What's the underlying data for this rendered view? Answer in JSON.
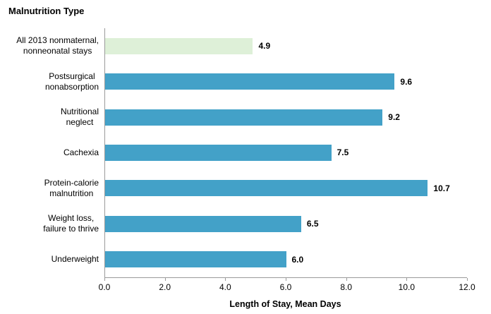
{
  "chart_data": {
    "type": "bar",
    "orientation": "horizontal",
    "title": "Malnutrition Type",
    "xlabel": "Length of Stay, Mean Days",
    "categories": [
      "All 2013 nonmaternal,\nnonneonatal stays",
      "Postsurgical\nnonabsorption",
      "Nutritional\nneglect",
      "Cachexia",
      "Protein-calorie\nmalnutrition",
      "Weight loss,\nfailure to thrive",
      "Underweight"
    ],
    "values": [
      4.9,
      9.6,
      9.2,
      7.5,
      10.7,
      6.5,
      6.0
    ],
    "value_labels": [
      "4.9",
      "9.6",
      "9.2",
      "7.5",
      "10.7",
      "6.5",
      "6.0"
    ],
    "xlim": [
      0,
      12
    ],
    "x_ticks": [
      "0.0",
      "2.0",
      "4.0",
      "6.0",
      "8.0",
      "10.0",
      "12.0"
    ],
    "grid": false,
    "legend": "none",
    "baseline_index": 0,
    "colors": {
      "baseline_bar": "#def0d8",
      "bar": "#43a1c8",
      "axis": "#9a9a9a",
      "text": "#000000",
      "background": "#ffffff"
    }
  }
}
